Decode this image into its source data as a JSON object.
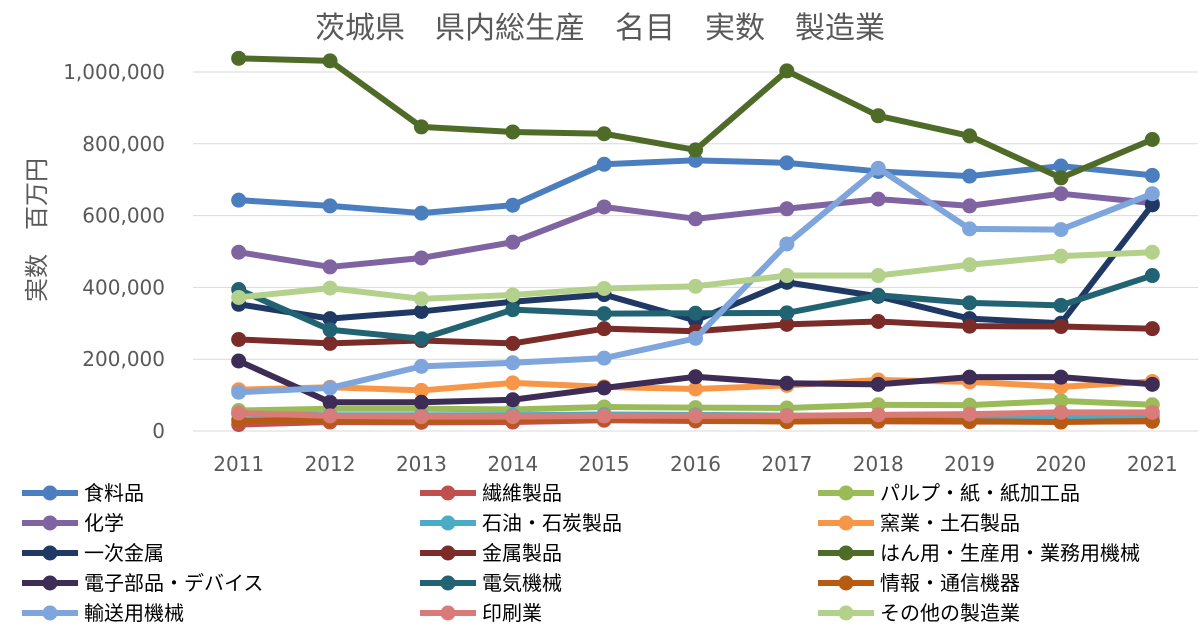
{
  "chart_data": {
    "type": "line",
    "title": "茨城県　県内総生産　名目　実数　製造業",
    "ylabel": "実数　百万円",
    "xlabel": "",
    "ylim": [
      0,
      1000000
    ],
    "y_ticks": [
      0,
      200000,
      400000,
      600000,
      800000,
      1000000
    ],
    "y_tick_labels": [
      "0",
      "200,000",
      "400,000",
      "600,000",
      "800,000",
      "1,000,000"
    ],
    "categories": [
      "2011",
      "2012",
      "2013",
      "2014",
      "2015",
      "2016",
      "2017",
      "2018",
      "2019",
      "2020",
      "2021"
    ],
    "grid": true,
    "legend_position": "bottom",
    "series": [
      {
        "name": "食料品",
        "color": "#4a7ebf",
        "values": [
          643000,
          627000,
          607000,
          629000,
          743000,
          754000,
          747000,
          723000,
          710000,
          738000,
          712000
        ]
      },
      {
        "name": "繊維製品",
        "color": "#c0504d",
        "values": [
          18000,
          25000,
          24000,
          25000,
          30000,
          28000,
          27000,
          27000,
          26000,
          26000,
          27000
        ]
      },
      {
        "name": "パルプ・紙・紙加工品",
        "color": "#9bbb59",
        "values": [
          57000,
          62000,
          62000,
          60000,
          67000,
          65000,
          64000,
          73000,
          72000,
          84000,
          73000
        ]
      },
      {
        "name": "化学",
        "color": "#8064a2",
        "values": [
          498000,
          457000,
          482000,
          526000,
          624000,
          591000,
          619000,
          646000,
          627000,
          661000,
          635000
        ]
      },
      {
        "name": "石油・石炭製品",
        "color": "#4bacc6",
        "values": [
          48000,
          44000,
          44000,
          44000,
          46000,
          45000,
          43000,
          42000,
          41000,
          40000,
          42000
        ]
      },
      {
        "name": "窯業・土石製品",
        "color": "#f79646",
        "values": [
          115000,
          122000,
          113000,
          134000,
          123000,
          117000,
          127000,
          142000,
          137000,
          123000,
          138000
        ]
      },
      {
        "name": "一次金属",
        "color": "#1f3864",
        "values": [
          353000,
          313000,
          333000,
          360000,
          380000,
          308000,
          414000,
          375000,
          313000,
          300000,
          630000
        ]
      },
      {
        "name": "金属製品",
        "color": "#7b2c28",
        "values": [
          255000,
          244000,
          252000,
          244000,
          285000,
          278000,
          297000,
          305000,
          292000,
          291000,
          285000
        ]
      },
      {
        "name": "はん用・生産用・業務用機械",
        "color": "#4f6b28",
        "values": [
          1038000,
          1031000,
          847000,
          833000,
          828000,
          783000,
          1003000,
          878000,
          822000,
          705000,
          812000
        ]
      },
      {
        "name": "電子部品・デバイス",
        "color": "#3d2c55",
        "values": [
          195000,
          80000,
          80000,
          87000,
          120000,
          151000,
          133000,
          130000,
          150000,
          150000,
          130000
        ]
      },
      {
        "name": "電気機械",
        "color": "#226373",
        "values": [
          394000,
          282000,
          257000,
          338000,
          327000,
          328000,
          329000,
          378000,
          357000,
          350000,
          433000
        ]
      },
      {
        "name": "情報・通信機器",
        "color": "#b85b12",
        "values": [
          30000,
          30000,
          30000,
          32000,
          35000,
          32000,
          26000,
          30000,
          27000,
          25000,
          28000
        ]
      },
      {
        "name": "輸送用機械",
        "color": "#7ea6dc",
        "values": [
          108000,
          120000,
          180000,
          190000,
          203000,
          258000,
          521000,
          732000,
          563000,
          561000,
          661000
        ]
      },
      {
        "name": "印刷業",
        "color": "#d97b78",
        "values": [
          50000,
          42000,
          40000,
          40000,
          42000,
          42000,
          42000,
          45000,
          47000,
          52000,
          52000
        ]
      },
      {
        "name": "その他の製造業",
        "color": "#b3d18a",
        "values": [
          372000,
          398000,
          368000,
          379000,
          397000,
          403000,
          433000,
          433000,
          463000,
          487000,
          498000
        ]
      }
    ]
  }
}
